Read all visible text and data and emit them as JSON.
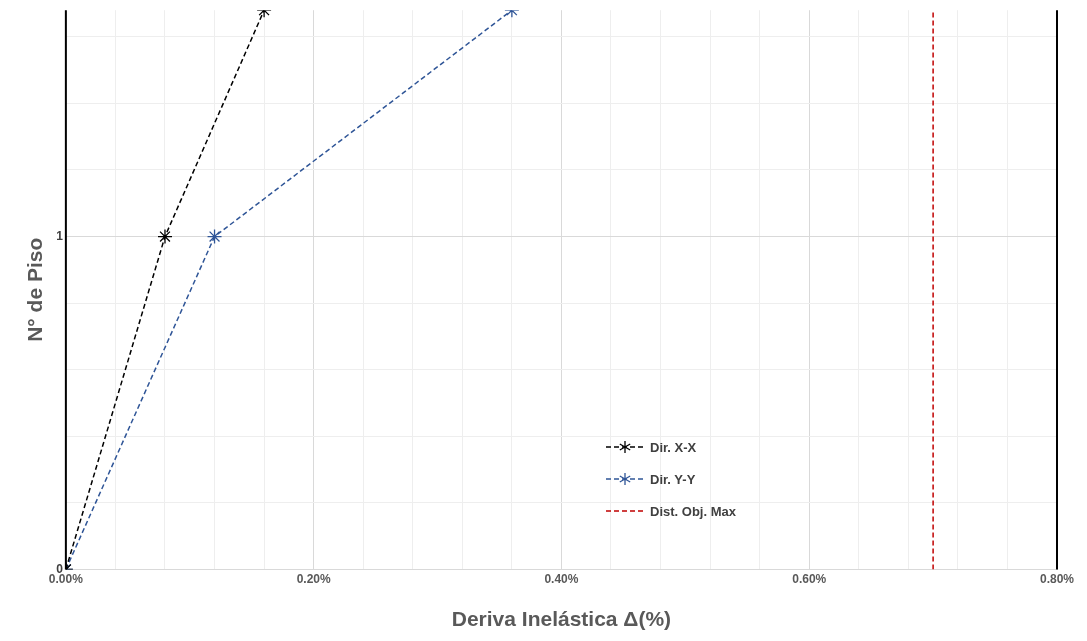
{
  "chart_data": {
    "type": "line",
    "xlabel": "Deriva Inelástica Δ(%)",
    "ylabel": "N° de Piso",
    "series": [
      {
        "name": "Dir. X-X",
        "color": "#000000",
        "x": [
          0,
          0.08,
          0.16
        ],
        "values": [
          0,
          1,
          1.68
        ]
      },
      {
        "name": "Dir. Y-Y",
        "color": "#2f5597",
        "x": [
          0,
          0.12,
          0.36
        ],
        "values": [
          0,
          1,
          1.68
        ]
      },
      {
        "name": "Dist. Obj. Max",
        "color": "#c00000",
        "x": [
          0.7,
          0.7
        ],
        "values": [
          0,
          1.68
        ],
        "marker": "none"
      }
    ],
    "xlim": [
      0,
      0.8
    ],
    "xticks": [
      {
        "value": 0,
        "label": "0.00%"
      },
      {
        "value": 0.04,
        "label": null
      },
      {
        "value": 0.08,
        "label": null
      },
      {
        "value": 0.12,
        "label": null
      },
      {
        "value": 0.16,
        "label": null
      },
      {
        "value": 0.2,
        "label": "0.20%"
      },
      {
        "value": 0.24,
        "label": null
      },
      {
        "value": 0.28,
        "label": null
      },
      {
        "value": 0.32,
        "label": null
      },
      {
        "value": 0.36,
        "label": null
      },
      {
        "value": 0.4,
        "label": "0.40%"
      },
      {
        "value": 0.44,
        "label": null
      },
      {
        "value": 0.48,
        "label": null
      },
      {
        "value": 0.52,
        "label": null
      },
      {
        "value": 0.56,
        "label": null
      },
      {
        "value": 0.6,
        "label": "0.60%"
      },
      {
        "value": 0.64,
        "label": null
      },
      {
        "value": 0.68,
        "label": null
      },
      {
        "value": 0.72,
        "label": null
      },
      {
        "value": 0.76,
        "label": null
      },
      {
        "value": 0.8,
        "label": "0.80%"
      }
    ],
    "ylim": [
      0,
      1.68
    ],
    "yticks": [
      0,
      {
        "value": 0.2,
        "label": null
      },
      {
        "value": 0.4,
        "label": null
      },
      {
        "value": 0.6,
        "label": null
      },
      {
        "value": 0.8,
        "label": null
      },
      1,
      {
        "value": 1.2,
        "label": null
      },
      {
        "value": 1.4,
        "label": null
      },
      {
        "value": 1.6,
        "label": null
      }
    ],
    "grid": true,
    "legend": "bottom right",
    "marker": "cross",
    "line_style": "dashed"
  }
}
